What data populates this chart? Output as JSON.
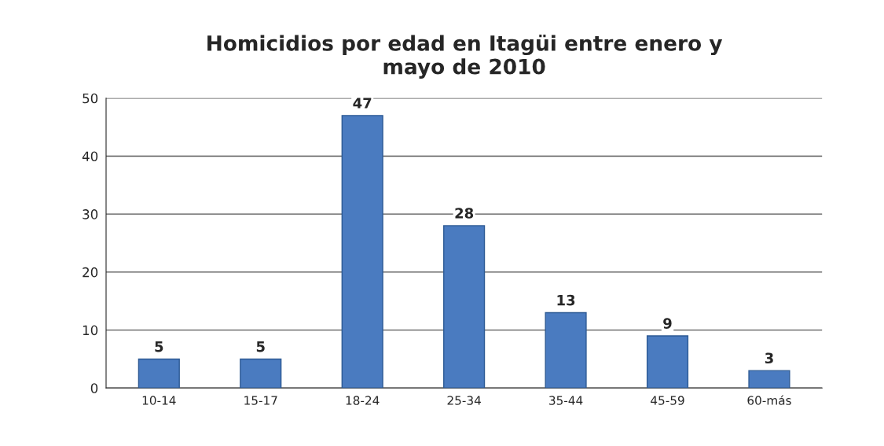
{
  "chart_data": {
    "type": "bar",
    "title": "Homicidios por edad en Itagüi entre enero y\nmayo de 2010",
    "categories": [
      "10-14",
      "15-17",
      "18-24",
      "25-34",
      "35-44",
      "45-59",
      "60-más"
    ],
    "values": [
      5,
      5,
      47,
      28,
      13,
      9,
      3
    ],
    "color": "#4a7bc0",
    "ylim": [
      0,
      50
    ],
    "yticks": [
      0,
      10,
      20,
      30,
      40,
      50
    ],
    "grid": "y",
    "data_labels": true
  }
}
